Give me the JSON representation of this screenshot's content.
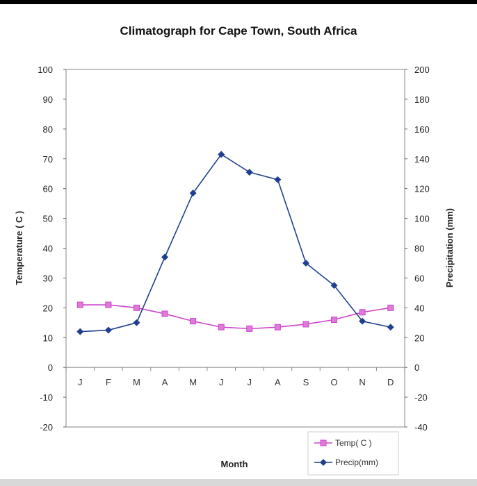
{
  "chart_data": {
    "type": "line",
    "title": "Climatograph for Cape Town, South Africa",
    "xlabel": "Month",
    "ylabel_left": "Temperature ( C )",
    "ylabel_right": "Precipitation (mm)",
    "categories": [
      "J",
      "F",
      "M",
      "A",
      "M",
      "J",
      "J",
      "A",
      "S",
      "O",
      "N",
      "D"
    ],
    "ylim_left": [
      -20,
      100
    ],
    "ylim_right": [
      -40,
      200
    ],
    "yticks_left": [
      100,
      90,
      80,
      70,
      60,
      50,
      40,
      30,
      20,
      10,
      0,
      -10,
      -20
    ],
    "yticks_right": [
      200,
      180,
      160,
      140,
      120,
      100,
      80,
      60,
      40,
      20,
      0,
      -20,
      -40
    ],
    "series": [
      {
        "name": "Temp( C )",
        "axis": "left",
        "color": "#cc44cc",
        "marker": "square",
        "values": [
          21,
          21,
          20,
          18,
          15.5,
          13.5,
          13,
          13.5,
          14.5,
          16,
          18.5,
          20
        ]
      },
      {
        "name": "Precip(mm)",
        "axis": "right",
        "color": "#1f3f8f",
        "marker": "diamond",
        "values": [
          24,
          25,
          30,
          74,
          117,
          143,
          131,
          126,
          70,
          55,
          31,
          27
        ]
      }
    ],
    "grid": false,
    "legend": "bottom-right"
  }
}
